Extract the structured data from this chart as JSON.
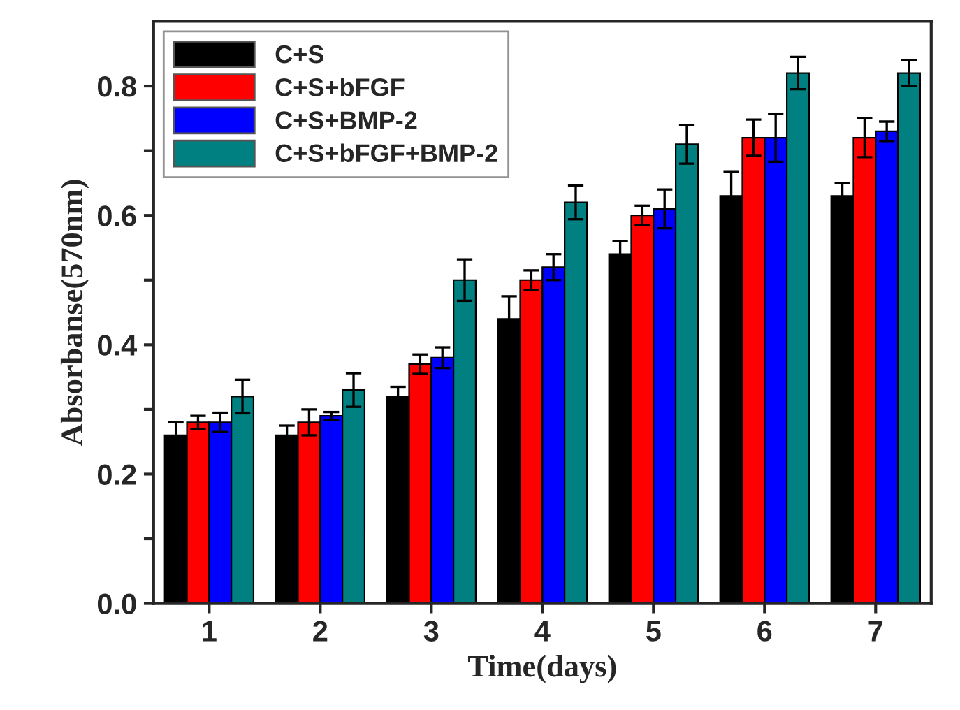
{
  "chart_data": {
    "type": "bar",
    "xlabel": "Time(days)",
    "ylabel": "Absorbanse(570nm)",
    "categories": [
      "1",
      "2",
      "3",
      "4",
      "5",
      "6",
      "7"
    ],
    "series": [
      {
        "name": "C+S",
        "color": "#000000",
        "values": [
          0.26,
          0.26,
          0.32,
          0.44,
          0.54,
          0.63,
          0.63
        ],
        "errors": [
          0.02,
          0.015,
          0.015,
          0.035,
          0.02,
          0.038,
          0.02
        ]
      },
      {
        "name": "C+S+bFGF",
        "color": "#ff0000",
        "values": [
          0.28,
          0.28,
          0.37,
          0.5,
          0.6,
          0.72,
          0.72
        ],
        "errors": [
          0.01,
          0.02,
          0.015,
          0.015,
          0.015,
          0.028,
          0.03
        ]
      },
      {
        "name": "C+S+BMP-2",
        "color": "#0000ff",
        "values": [
          0.28,
          0.29,
          0.38,
          0.52,
          0.61,
          0.72,
          0.73
        ],
        "errors": [
          0.015,
          0.006,
          0.016,
          0.02,
          0.03,
          0.037,
          0.015
        ]
      },
      {
        "name": "C+S+bFGF+BMP-2",
        "color": "#008080",
        "values": [
          0.32,
          0.33,
          0.5,
          0.62,
          0.71,
          0.82,
          0.82
        ],
        "errors": [
          0.026,
          0.026,
          0.032,
          0.026,
          0.03,
          0.025,
          0.02
        ]
      }
    ],
    "ylim": [
      0,
      0.9
    ],
    "yticks": [
      {
        "value": 0,
        "label": "0.0"
      },
      {
        "value": 0.1,
        "label": null
      },
      {
        "value": 0.2,
        "label": "0.2"
      },
      {
        "value": 0.3,
        "label": null
      },
      {
        "value": 0.4,
        "label": "0.4"
      },
      {
        "value": 0.5,
        "label": null
      },
      {
        "value": 0.6,
        "label": "0.6"
      },
      {
        "value": 0.7,
        "label": null
      },
      {
        "value": 0.8,
        "label": "0.8"
      }
    ],
    "legend": "top left",
    "grid": false
  }
}
